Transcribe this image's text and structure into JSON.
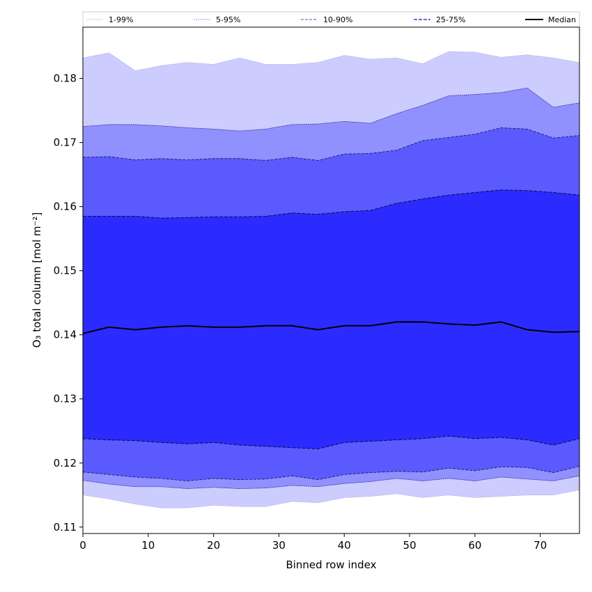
{
  "chart_data": {
    "type": "area",
    "title": "",
    "xlabel": "Binned row index",
    "ylabel": "O₃ total column [mol m⁻²]",
    "xlim": [
      0,
      76
    ],
    "ylim": [
      0.109,
      0.188
    ],
    "x_ticks": [
      0,
      10,
      20,
      30,
      40,
      50,
      60,
      70
    ],
    "y_ticks": [
      0.11,
      0.12,
      0.13,
      0.14,
      0.15,
      0.16,
      0.17,
      0.18
    ],
    "y_tick_labels": [
      "0.11",
      "0.12",
      "0.13",
      "0.14",
      "0.15",
      "0.16",
      "0.17",
      "0.18"
    ],
    "grid": false,
    "legend_position": "top, above plot",
    "x": [
      0,
      4,
      8,
      12,
      16,
      20,
      24,
      28,
      32,
      36,
      40,
      44,
      48,
      52,
      56,
      60,
      64,
      68,
      72,
      76
    ],
    "series": [
      {
        "name": "1-99%",
        "lower": [
          0.115,
          0.1144,
          0.1136,
          0.113,
          0.113,
          0.1134,
          0.1132,
          0.1132,
          0.114,
          0.1138,
          0.1146,
          0.1148,
          0.1152,
          0.1146,
          0.115,
          0.1146,
          0.1148,
          0.115,
          0.115,
          0.1158
        ],
        "upper": [
          0.1832,
          0.184,
          0.1812,
          0.182,
          0.1825,
          0.1822,
          0.1832,
          0.1822,
          0.1822,
          0.1825,
          0.1836,
          0.183,
          0.1832,
          0.1823,
          0.1842,
          0.1841,
          0.1833,
          0.1837,
          0.1832,
          0.1825
        ]
      },
      {
        "name": "5-95%",
        "lower": [
          0.1173,
          0.1167,
          0.1163,
          0.1163,
          0.116,
          0.1162,
          0.116,
          0.1161,
          0.1165,
          0.1163,
          0.1168,
          0.1171,
          0.1176,
          0.1172,
          0.1176,
          0.1172,
          0.1178,
          0.1175,
          0.1172,
          0.118
        ],
        "upper": [
          0.1725,
          0.1728,
          0.1728,
          0.1726,
          0.1723,
          0.1721,
          0.1718,
          0.1721,
          0.1728,
          0.1729,
          0.1733,
          0.173,
          0.1745,
          0.1758,
          0.1773,
          0.1775,
          0.1778,
          0.1785,
          0.1755,
          0.1762
        ]
      },
      {
        "name": "10-90%",
        "lower": [
          0.1186,
          0.1182,
          0.1178,
          0.1176,
          0.1172,
          0.1176,
          0.1174,
          0.1175,
          0.118,
          0.1174,
          0.1182,
          0.1185,
          0.1187,
          0.1186,
          0.1192,
          0.1188,
          0.1194,
          0.1193,
          0.1185,
          0.1195
        ],
        "upper": [
          0.1677,
          0.1678,
          0.1673,
          0.1675,
          0.1673,
          0.1675,
          0.1675,
          0.1672,
          0.1677,
          0.1672,
          0.1682,
          0.1683,
          0.1688,
          0.1703,
          0.1708,
          0.1713,
          0.1723,
          0.1721,
          0.1707,
          0.1711
        ]
      },
      {
        "name": "25-75%",
        "lower": [
          0.1238,
          0.1236,
          0.1235,
          0.1232,
          0.123,
          0.1232,
          0.1228,
          0.1226,
          0.1224,
          0.1222,
          0.1232,
          0.1234,
          0.1236,
          0.1238,
          0.1242,
          0.1238,
          0.124,
          0.1236,
          0.1228,
          0.1238
        ],
        "upper": [
          0.1585,
          0.1585,
          0.1585,
          0.1582,
          0.1583,
          0.1584,
          0.1584,
          0.1585,
          0.159,
          0.1588,
          0.1592,
          0.1594,
          0.1605,
          0.1612,
          0.1618,
          0.1622,
          0.1626,
          0.1625,
          0.1622,
          0.1618
        ]
      },
      {
        "name": "Median",
        "values": [
          0.1402,
          0.1412,
          0.1408,
          0.1412,
          0.1414,
          0.1412,
          0.1412,
          0.1414,
          0.1414,
          0.1408,
          0.1414,
          0.1414,
          0.142,
          0.142,
          0.1417,
          0.1415,
          0.142,
          0.1408,
          0.1404,
          0.1405
        ]
      }
    ]
  },
  "colors": {
    "band_1_99": "#ccccff",
    "band_5_95": "#9090ff",
    "band_10_90": "#5a5aff",
    "band_25_75": "#2b2bff",
    "median": "#000000",
    "background": "#ffffff"
  }
}
